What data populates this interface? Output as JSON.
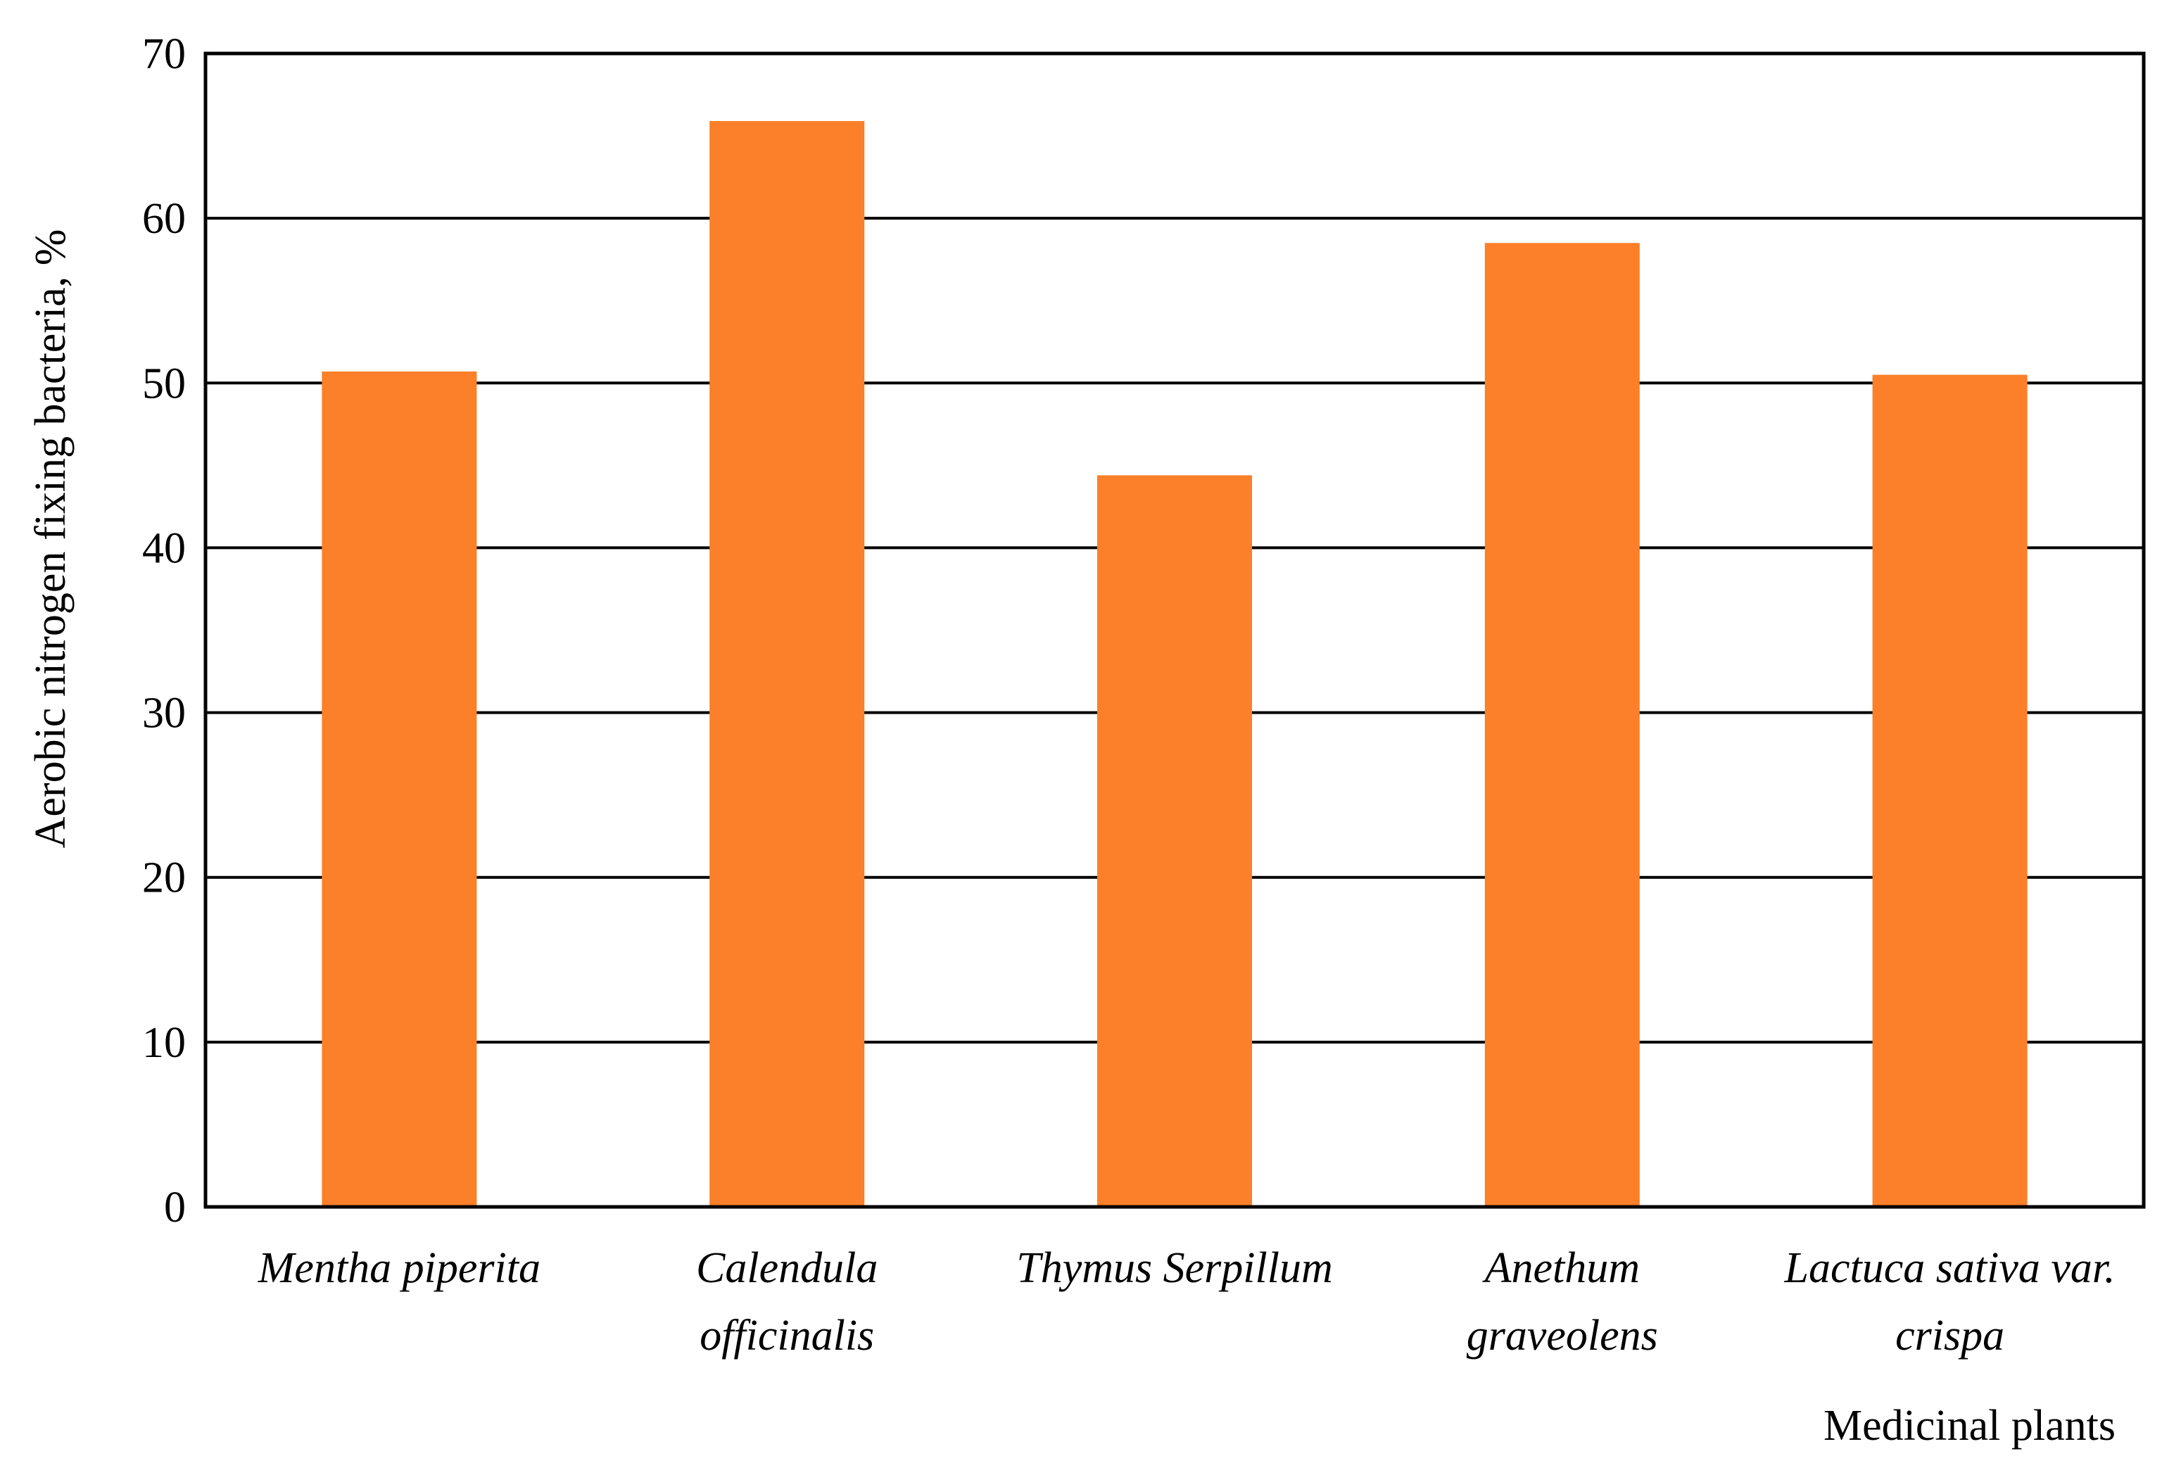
{
  "chart_data": {
    "type": "bar",
    "title": "",
    "xlabel": "Medicinal plants",
    "ylabel": "Aerobic nitrogen fixing bacteria, %",
    "categories": [
      [
        "Mentha piperita"
      ],
      [
        "Calendula",
        "officinalis"
      ],
      [
        "Thymus Serpillum"
      ],
      [
        "Anethum",
        "graveolens"
      ],
      [
        "Lactuca sativa var.",
        "crispa"
      ]
    ],
    "series": [
      {
        "values": [
          50.7,
          65.9,
          44.4,
          58.5,
          50.5
        ]
      }
    ],
    "ylim": [
      0,
      70
    ],
    "yticks": [
      0,
      10,
      20,
      30,
      40,
      50,
      60,
      70
    ],
    "grid": true,
    "legend": "none",
    "colors": {
      "bar": "#fc7f29",
      "grid": "#000000",
      "frame": "#000000"
    }
  }
}
